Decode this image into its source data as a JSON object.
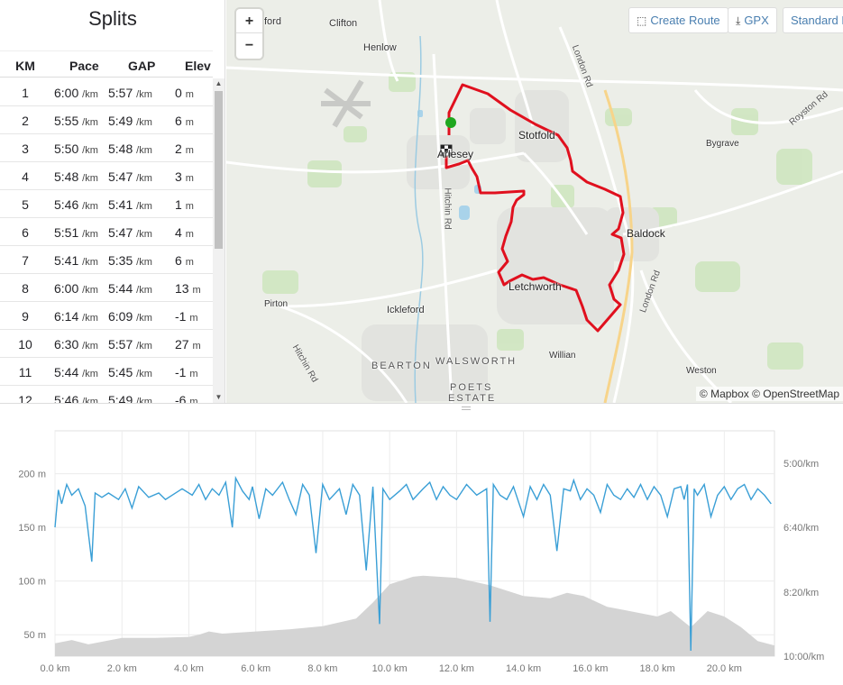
{
  "splits": {
    "title": "Splits",
    "columns": {
      "km": "KM",
      "pace": "Pace",
      "gap": "GAP",
      "elev": "Elev"
    },
    "pace_unit": "/km",
    "elev_unit": "m",
    "rows": [
      {
        "km": "1",
        "pace": "6:00",
        "gap": "5:57",
        "elev": "0"
      },
      {
        "km": "2",
        "pace": "5:55",
        "gap": "5:49",
        "elev": "6"
      },
      {
        "km": "3",
        "pace": "5:50",
        "gap": "5:48",
        "elev": "2"
      },
      {
        "km": "4",
        "pace": "5:48",
        "gap": "5:47",
        "elev": "3"
      },
      {
        "km": "5",
        "pace": "5:46",
        "gap": "5:41",
        "elev": "1"
      },
      {
        "km": "6",
        "pace": "5:51",
        "gap": "5:47",
        "elev": "4"
      },
      {
        "km": "7",
        "pace": "5:41",
        "gap": "5:35",
        "elev": "6"
      },
      {
        "km": "8",
        "pace": "6:00",
        "gap": "5:44",
        "elev": "13"
      },
      {
        "km": "9",
        "pace": "6:14",
        "gap": "6:09",
        "elev": "-1"
      },
      {
        "km": "10",
        "pace": "6:30",
        "gap": "5:57",
        "elev": "27"
      },
      {
        "km": "11",
        "pace": "5:44",
        "gap": "5:45",
        "elev": "-1"
      },
      {
        "km": "12",
        "pace": "5:46",
        "gap": "5:49",
        "elev": "-6"
      }
    ],
    "scroll_up": "▲",
    "scroll_down": "▼"
  },
  "map": {
    "zoom_in": "+",
    "zoom_out": "−",
    "buttons": {
      "create_route": "Create Route",
      "gpx": "GPX",
      "standard": "Standard M"
    },
    "icons": {
      "create_route": "route-icon",
      "gpx": "download-icon"
    },
    "attribution": "© Mapbox © OpenStreetMap",
    "places": {
      "stotfold": "Stotfold",
      "baldock": "Baldock",
      "letchworth": "Letchworth",
      "arlesey": "Arlesey",
      "clifton": "Clifton",
      "henlow": "Henlow",
      "shefford_partial": "ford",
      "bygrave": "Bygrave",
      "pirton": "Pirton",
      "ickleford": "Ickleford",
      "willian": "Willian",
      "weston": "Weston",
      "bearton": "BEARTON",
      "walsworth": "WALSWORTH",
      "poets": "POETS",
      "estate": "ESTATE"
    },
    "roads": {
      "london_rd_north": "London Rd",
      "london_rd_south": "London Rd",
      "royston_rd": "Royston Rd",
      "hitchin_rd_north": "Hitchin Rd",
      "hitchin_rd_south": "Hitchin Rd"
    },
    "colors": {
      "route": "#e0101e",
      "start": "#1fa71f"
    }
  },
  "chart_data": {
    "type": "line",
    "x_unit": "km",
    "xlim": [
      0,
      21.5
    ],
    "x_ticks": [
      "0.0 km",
      "2.0 km",
      "4.0 km",
      "6.0 km",
      "8.0 km",
      "10.0 km",
      "12.0 km",
      "14.0 km",
      "16.0 km",
      "18.0 km",
      "20.0 km"
    ],
    "y_left_ticks": [
      "200 m",
      "150 m",
      "100 m",
      "50 m"
    ],
    "y_right_ticks": [
      "5:00/km",
      "6:40/km",
      "8:20/km",
      "10:00/km"
    ],
    "ylim_left": [
      30,
      240
    ],
    "series": [
      {
        "type": "area",
        "color": "#d4d4d4",
        "x": [
          0,
          0.5,
          1,
          2,
          3,
          4,
          4.3,
          4.6,
          5,
          6,
          7,
          8,
          9,
          9.5,
          10,
          10.7,
          11,
          12,
          13,
          14,
          14.8,
          15.3,
          15.8,
          16.5,
          17,
          18,
          18.4,
          19,
          19.5,
          20,
          20.5,
          21,
          21.5
        ],
        "values": [
          42,
          45,
          41,
          47,
          47,
          48,
          50,
          53,
          51,
          53,
          55,
          58,
          65,
          80,
          97,
          104,
          105,
          103,
          96,
          86,
          84,
          89,
          86,
          76,
          73,
          67,
          72,
          57,
          72,
          67,
          57,
          44,
          40
        ]
      },
      {
        "type": "line",
        "color": "#3a9fd6",
        "x": [
          0,
          0.1,
          0.2,
          0.35,
          0.5,
          0.7,
          0.9,
          1.1,
          1.2,
          1.4,
          1.6,
          1.9,
          2.1,
          2.3,
          2.5,
          2.8,
          3.1,
          3.3,
          3.5,
          3.8,
          4.1,
          4.3,
          4.5,
          4.7,
          4.9,
          5.1,
          5.3,
          5.4,
          5.6,
          5.8,
          5.9,
          6.1,
          6.3,
          6.5,
          6.8,
          7.0,
          7.2,
          7.4,
          7.6,
          7.8,
          8.0,
          8.2,
          8.5,
          8.7,
          8.9,
          9.1,
          9.3,
          9.5,
          9.7,
          9.8,
          10.0,
          10.3,
          10.5,
          10.7,
          11.0,
          11.2,
          11.4,
          11.6,
          11.8,
          12.0,
          12.3,
          12.6,
          12.9,
          13.0,
          13.1,
          13.3,
          13.5,
          13.7,
          14.0,
          14.2,
          14.4,
          14.6,
          14.8,
          15.0,
          15.2,
          15.4,
          15.5,
          15.7,
          15.9,
          16.1,
          16.3,
          16.5,
          16.7,
          16.9,
          17.1,
          17.3,
          17.5,
          17.7,
          17.9,
          18.1,
          18.3,
          18.5,
          18.7,
          18.8,
          18.9,
          19.0,
          19.1,
          19.2,
          19.4,
          19.6,
          19.8,
          20.0,
          20.2,
          20.4,
          20.6,
          20.8,
          21.0,
          21.2,
          21.4
        ],
        "values": [
          150,
          185,
          172,
          190,
          180,
          186,
          170,
          118,
          182,
          178,
          182,
          176,
          186,
          168,
          188,
          178,
          182,
          176,
          180,
          186,
          180,
          190,
          176,
          186,
          180,
          192,
          150,
          196,
          184,
          176,
          188,
          158,
          186,
          180,
          192,
          176,
          162,
          190,
          180,
          126,
          190,
          176,
          186,
          162,
          190,
          180,
          110,
          188,
          60,
          186,
          176,
          184,
          190,
          176,
          186,
          192,
          176,
          188,
          180,
          176,
          190,
          180,
          186,
          62,
          190,
          180,
          176,
          188,
          160,
          188,
          176,
          190,
          180,
          128,
          186,
          184,
          194,
          176,
          186,
          180,
          164,
          190,
          180,
          176,
          186,
          178,
          190,
          176,
          188,
          180,
          160,
          186,
          188,
          176,
          190,
          35,
          186,
          180,
          190,
          160,
          180,
          188,
          176,
          186,
          190,
          176,
          186,
          180,
          172
        ]
      }
    ]
  }
}
